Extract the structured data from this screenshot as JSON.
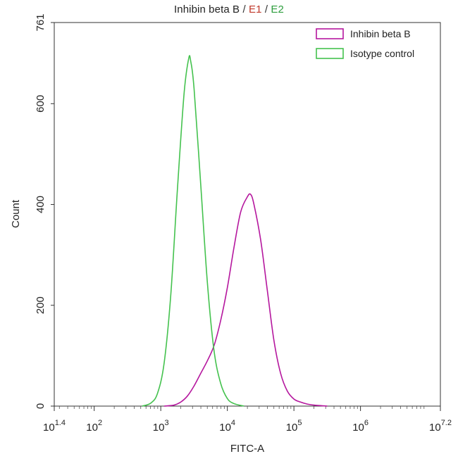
{
  "chart_data": {
    "type": "line",
    "title": {
      "main": "Inhibin beta B",
      "sep1": "/",
      "e1": "E1",
      "sep2": "/",
      "e2": "E2"
    },
    "xlabel": "FITC-A",
    "ylabel": "Count",
    "x_scale": "log10",
    "xlim": [
      1.4,
      7.2
    ],
    "ylim": [
      0,
      761
    ],
    "x_ticks": [
      {
        "base": "10",
        "exp": "1.4",
        "value": 1.4
      },
      {
        "base": "10",
        "exp": "2",
        "value": 2
      },
      {
        "base": "10",
        "exp": "3",
        "value": 3
      },
      {
        "base": "10",
        "exp": "4",
        "value": 4
      },
      {
        "base": "10",
        "exp": "5",
        "value": 5
      },
      {
        "base": "10",
        "exp": "6",
        "value": 6
      },
      {
        "base": "10",
        "exp": "7.2",
        "value": 7.2
      }
    ],
    "y_ticks": [
      "0",
      "200",
      "400",
      "600",
      "761"
    ],
    "y_tick_values": [
      0,
      200,
      400,
      600,
      761
    ],
    "legend_position": "top-right",
    "series": [
      {
        "name": "Inhibin beta B",
        "color": "#b5179e",
        "points": [
          [
            3.05,
            0
          ],
          [
            3.2,
            2
          ],
          [
            3.3,
            8
          ],
          [
            3.4,
            20
          ],
          [
            3.5,
            40
          ],
          [
            3.6,
            65
          ],
          [
            3.7,
            90
          ],
          [
            3.8,
            120
          ],
          [
            3.9,
            170
          ],
          [
            4.0,
            235
          ],
          [
            4.1,
            315
          ],
          [
            4.2,
            385
          ],
          [
            4.3,
            415
          ],
          [
            4.35,
            420
          ],
          [
            4.4,
            400
          ],
          [
            4.5,
            330
          ],
          [
            4.6,
            230
          ],
          [
            4.7,
            130
          ],
          [
            4.8,
            65
          ],
          [
            4.9,
            30
          ],
          [
            5.0,
            14
          ],
          [
            5.1,
            8
          ],
          [
            5.2,
            4
          ],
          [
            5.3,
            2
          ],
          [
            5.5,
            0
          ]
        ]
      },
      {
        "name": "Isotype control",
        "color": "#44c24e",
        "points": [
          [
            2.72,
            0
          ],
          [
            2.85,
            6
          ],
          [
            2.95,
            25
          ],
          [
            3.05,
            85
          ],
          [
            3.15,
            220
          ],
          [
            3.25,
            430
          ],
          [
            3.35,
            620
          ],
          [
            3.42,
            690
          ],
          [
            3.45,
            684
          ],
          [
            3.5,
            630
          ],
          [
            3.6,
            440
          ],
          [
            3.7,
            245
          ],
          [
            3.8,
            110
          ],
          [
            3.9,
            45
          ],
          [
            4.0,
            15
          ],
          [
            4.1,
            5
          ],
          [
            4.25,
            0
          ]
        ]
      }
    ]
  }
}
